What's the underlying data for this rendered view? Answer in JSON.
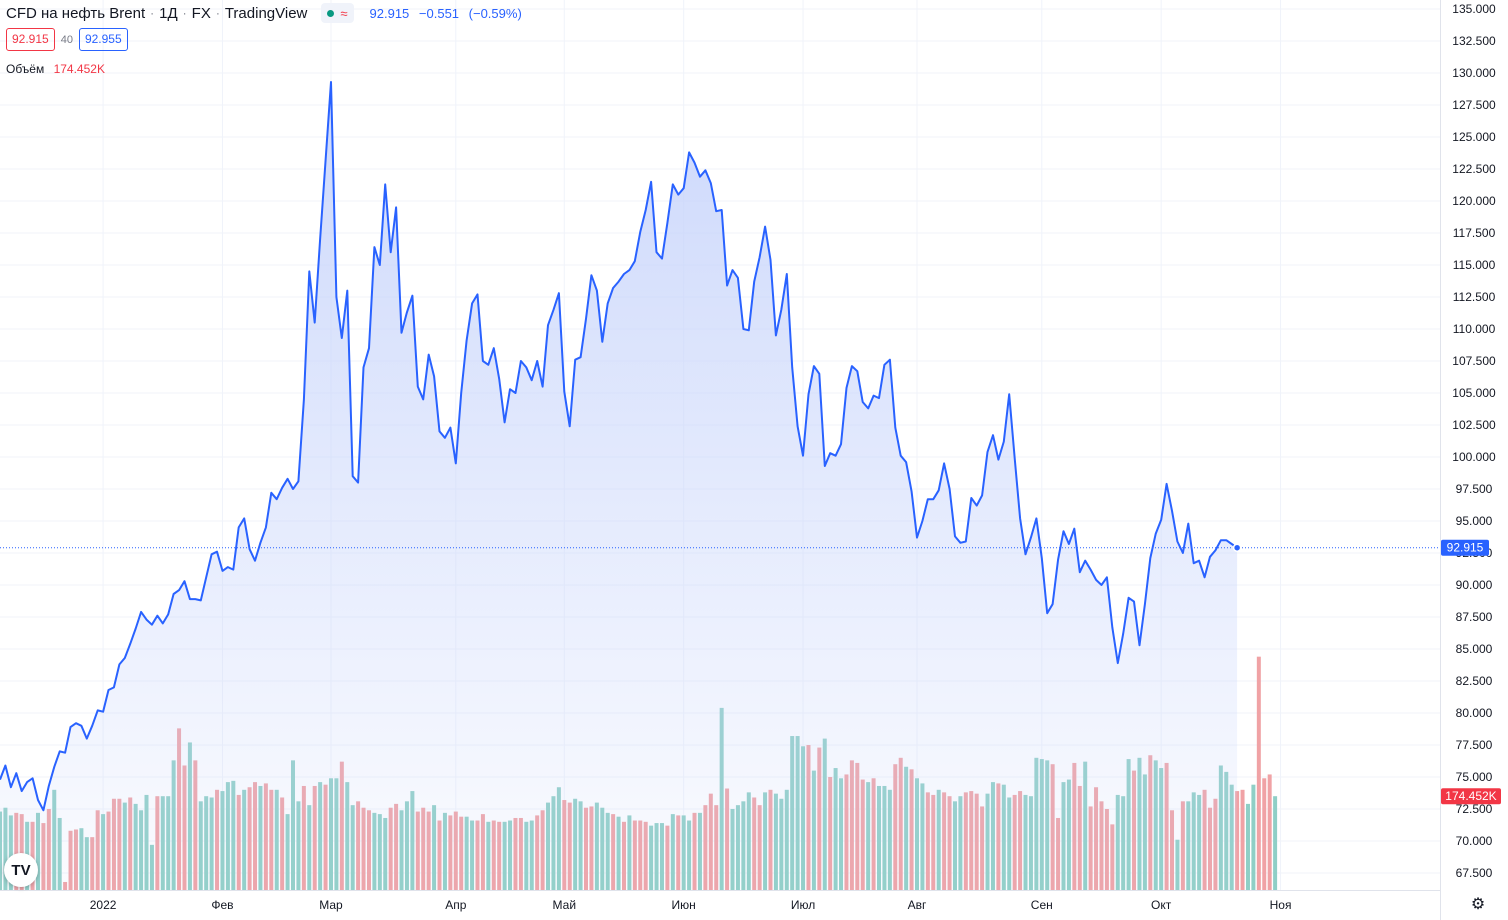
{
  "header": {
    "symbol": "CFD на нефть Brent",
    "interval": "1Д",
    "exchange": "FX",
    "source": "TradingView",
    "status_icons": [
      "market-open-dot",
      "delayed-wave-icon"
    ],
    "last_price": "92.915",
    "change": "−0.551",
    "change_pct": "(−0.59%)"
  },
  "quotes": {
    "bid": "92.915",
    "spread": "40",
    "ask": "92.955"
  },
  "volume_indicator": {
    "label": "Объём",
    "value": "174.452K"
  },
  "price_axis": {
    "current_label": "92.915",
    "volume_label": "174.452K"
  },
  "colors": {
    "line": "#2962ff",
    "area_top": "#c7d4fb",
    "up_volume": "#8fcfc6",
    "down_volume": "#f0a2a5",
    "grid": "#f0f3fa",
    "price_badge": "#2962ff",
    "volume_badge": "#f23645"
  },
  "chart_data": {
    "type": "area",
    "title": "CFD на нефть Brent · 1Д · FX",
    "y_ticks": [
      "67.500",
      "70.000",
      "72.500",
      "75.000",
      "77.500",
      "80.000",
      "82.500",
      "85.000",
      "87.500",
      "90.000",
      "92.500",
      "95.000",
      "97.500",
      "100.000",
      "102.500",
      "105.000",
      "107.500",
      "110.000",
      "112.500",
      "115.000",
      "117.500",
      "120.000",
      "122.500",
      "125.000",
      "127.500",
      "130.000",
      "132.500",
      "135.000"
    ],
    "ylim": [
      66.5,
      135.5
    ],
    "x_ticks": [
      {
        "label": "2022",
        "index": 19
      },
      {
        "label": "Фев",
        "index": 41
      },
      {
        "label": "Мар",
        "index": 61
      },
      {
        "label": "Апр",
        "index": 84
      },
      {
        "label": "Май",
        "index": 104
      },
      {
        "label": "Июн",
        "index": 126
      },
      {
        "label": "Июл",
        "index": 148
      },
      {
        "label": "Авг",
        "index": 169
      },
      {
        "label": "Сен",
        "index": 192
      },
      {
        "label": "Окт",
        "index": 214
      },
      {
        "label": "Ноя",
        "index": 236
      }
    ],
    "x_count": 254,
    "series": [
      {
        "type": "line",
        "values": [
          74.8,
          75.9,
          74.2,
          75.3,
          73.9,
          74.6,
          74.9,
          73.2,
          72.4,
          74.3,
          75.8,
          77.0,
          76.9,
          78.9,
          79.2,
          79.0,
          78.0,
          79.0,
          80.2,
          80.1,
          81.8,
          82.0,
          83.8,
          84.3,
          85.4,
          86.6,
          87.9,
          87.3,
          86.9,
          87.6,
          87.0,
          87.7,
          89.3,
          89.6,
          90.3,
          88.9,
          88.9,
          88.8,
          90.6,
          92.4,
          92.6,
          91.1,
          91.4,
          91.2,
          94.5,
          95.2,
          92.8,
          91.9,
          93.3,
          94.5,
          97.2,
          96.7,
          97.6,
          98.3,
          97.5,
          98.1,
          104.5,
          114.5,
          110.5,
          117.0,
          123.2,
          129.3,
          112.5,
          109.3,
          113.0,
          98.5,
          98.0,
          107.0,
          108.5,
          116.4,
          115.0,
          121.3,
          116.0,
          119.5,
          109.7,
          111.3,
          112.6,
          105.5,
          104.5,
          108.0,
          106.3,
          102.0,
          101.5,
          102.3,
          99.5,
          105.0,
          109.1,
          112.0,
          112.7,
          107.5,
          107.2,
          108.5,
          106.1,
          102.7,
          105.3,
          105.0,
          107.5,
          107.0,
          106.0,
          107.5,
          105.5,
          110.3,
          111.5,
          112.8,
          105.1,
          102.4,
          107.6,
          107.8,
          110.8,
          114.2,
          113.0,
          109.0,
          112.0,
          113.2,
          113.7,
          114.3,
          114.6,
          115.3,
          117.6,
          119.3,
          121.5,
          116.0,
          115.5,
          118.3,
          121.3,
          120.5,
          121.0,
          123.8,
          123.0,
          121.9,
          122.4,
          121.4,
          119.2,
          119.3,
          113.4,
          114.6,
          114.0,
          110.0,
          109.9,
          113.7,
          115.6,
          118.0,
          115.4,
          109.5,
          111.5,
          114.3,
          107.0,
          102.4,
          100.1,
          104.9,
          107.1,
          106.5,
          99.3,
          100.3,
          100.1,
          101.0,
          105.4,
          107.1,
          106.7,
          104.3,
          103.8,
          104.8,
          104.6,
          107.2,
          107.6,
          102.3,
          100.1,
          99.6,
          97.3,
          93.7,
          95.0,
          96.7,
          96.7,
          97.4,
          99.5,
          97.5,
          93.8,
          93.3,
          93.4,
          96.8,
          96.2,
          97.0,
          100.4,
          101.7,
          99.8,
          101.2,
          104.9,
          99.9,
          95.2,
          92.4,
          93.7,
          95.2,
          92.1,
          87.8,
          88.5,
          92.0,
          94.2,
          93.2,
          94.4,
          91.0,
          91.9,
          91.2,
          90.4,
          90.0,
          90.6,
          86.7,
          83.9,
          86.2,
          89.0,
          88.7,
          85.3,
          88.5,
          92.1,
          94.0,
          95.1,
          97.9,
          95.8,
          93.4,
          92.5,
          94.8,
          91.7,
          91.9,
          90.6,
          92.2,
          92.7,
          93.5,
          93.5,
          93.2,
          92.915
        ],
        "closes_last": "92.915"
      },
      {
        "type": "bar",
        "name": "Объём",
        "values": [
          72.3,
          72.6,
          72.0,
          72.2,
          72.1,
          71.5,
          71.5,
          72.2,
          71.4,
          72.5,
          74.0,
          71.8,
          66.8,
          70.8,
          70.9,
          71.0,
          70.3,
          70.3,
          72.4,
          72.1,
          72.3,
          73.3,
          73.3,
          73.0,
          73.4,
          72.9,
          72.4,
          73.6,
          69.7,
          73.5,
          73.5,
          73.5,
          76.3,
          78.8,
          75.9,
          77.7,
          76.3,
          73.1,
          73.5,
          73.4,
          74.0,
          73.9,
          74.6,
          74.7,
          73.6,
          74.0,
          74.2,
          74.6,
          74.3,
          74.5,
          74.0,
          74.0,
          73.4,
          72.1,
          76.3,
          73.1,
          74.3,
          72.8,
          74.3,
          74.6,
          74.4,
          74.9,
          74.9,
          76.2,
          74.6,
          72.8,
          73.1,
          72.6,
          72.4,
          72.2,
          72.1,
          71.8,
          72.6,
          72.9,
          72.4,
          73.1,
          73.9,
          72.3,
          72.6,
          72.3,
          72.8,
          71.6,
          72.2,
          72.0,
          72.3,
          71.9,
          71.9,
          71.6,
          71.6,
          72.1,
          71.5,
          71.6,
          71.5,
          71.5,
          71.6,
          71.8,
          71.8,
          71.5,
          71.6,
          72.0,
          72.4,
          73.0,
          73.5,
          74.2,
          73.2,
          73.0,
          73.3,
          73.1,
          72.6,
          72.7,
          73.0,
          72.6,
          72.2,
          72.1,
          71.9,
          71.5,
          72.0,
          71.6,
          71.6,
          71.5,
          71.2,
          71.4,
          71.4,
          71.2,
          72.1,
          72.0,
          72.0,
          71.6,
          72.2,
          72.2,
          72.8,
          73.7,
          72.8,
          80.4,
          74.1,
          72.5,
          72.8,
          73.1,
          73.8,
          73.4,
          72.8,
          73.8,
          74.0,
          73.7,
          73.3,
          74.0,
          78.2,
          78.2,
          77.4,
          77.5,
          75.5,
          77.3,
          78.0,
          75.0,
          75.7,
          74.9,
          75.2,
          76.3,
          76.1,
          74.8,
          74.6,
          74.9,
          74.3,
          74.3,
          74.0,
          76.0,
          76.5,
          75.8,
          75.6,
          74.9,
          74.5,
          73.8,
          73.6,
          74.0,
          73.8,
          73.5,
          73.1,
          73.5,
          73.8,
          73.9,
          73.7,
          72.7,
          73.7,
          74.6,
          74.5,
          74.4,
          73.4,
          73.6,
          73.9,
          73.6,
          73.5,
          76.5,
          76.4,
          76.3,
          76.0,
          71.8,
          74.6,
          74.8,
          76.1,
          74.3,
          76.2,
          72.7,
          74.2,
          73.1,
          72.5,
          71.3,
          73.6,
          73.5,
          76.4,
          75.5,
          76.5,
          75.2,
          76.7,
          76.3,
          75.7,
          76.1,
          72.4,
          70.1,
          73.1,
          73.1,
          73.8,
          73.6,
          74.0,
          72.6,
          73.3,
          75.9,
          75.4,
          74.4,
          73.9,
          74.0,
          72.9,
          74.4,
          84.4,
          74.9,
          75.2,
          73.5
        ],
        "directions": "uuuddududduuddduudduddduduuuuduuudduduuuduuududdudduduuudududuuduuddduuudduuudddududdduuddudduudduudduuudduudduuudududdduuududuududdduduuuudduduuuuuudududuudddduduuudduduuddudduudddduuduudduuuuudduudduddddduuuduuduudduduuuddduuudduuddduuddduudduudduuudduuudddd"
      }
    ],
    "grid": true,
    "legend": "none"
  }
}
